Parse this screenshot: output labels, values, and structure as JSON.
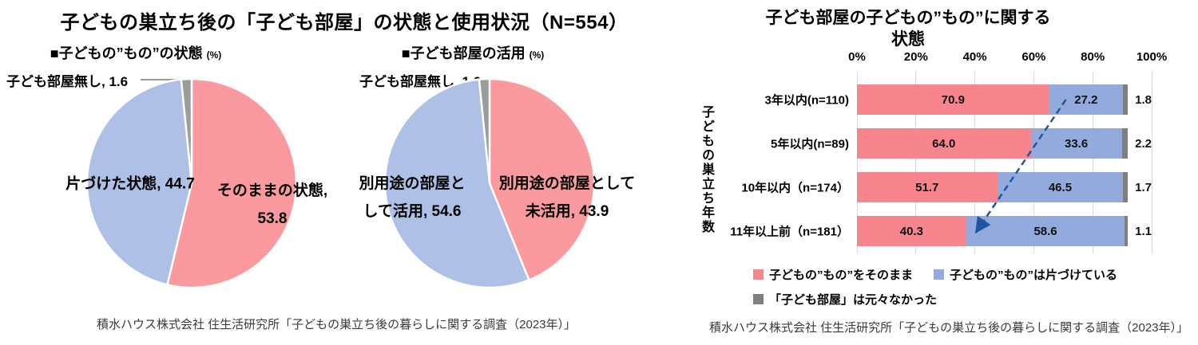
{
  "left_panel": {
    "title": "子どもの巣立ち後の「子ども部屋」の状態と使用状況（N=554）",
    "source": "積水ハウス株式会社 住生活研究所「子どもの巣立ち後の暮らしに関する調査（2023年）」",
    "figures": [
      {
        "title": "■子どもの”もの”の状態",
        "unit": "(%)",
        "callout_label": "子ども部屋無し, 1.6",
        "left_label_lines": [
          "片づけた状態, 44.7"
        ],
        "right_label_lines": [
          "そのままの状態,",
          "53.8"
        ]
      },
      {
        "title": "■子ども部屋の活用",
        "unit": "(%)",
        "callout_label": "子ども部屋無し, 1.6",
        "left_label_lines": [
          "別用途の部屋と",
          "して活用, 54.6"
        ],
        "right_label_lines": [
          "別用途の部屋として",
          "未活用, 43.9"
        ]
      }
    ]
  },
  "right_panel": {
    "title_lines": [
      "子ども部屋の子どもの”もの”に関する",
      "状態"
    ],
    "y_axis_title": "子どもの巣立ち年数",
    "source": "積水ハウス株式会社 住生活研究所「子どもの巣立ち後の暮らしに関する調査（2023年）」"
  },
  "chart_data": [
    {
      "type": "pie",
      "title": "子どもの”もの”の状態",
      "unit": "%",
      "start_angle": "top",
      "direction": "clockwise",
      "slices": [
        {
          "label": "そのままの状態",
          "value": 53.8,
          "color": "#FA9A9E"
        },
        {
          "label": "片づけた状態",
          "value": 44.7,
          "color": "#AEC0E6"
        },
        {
          "label": "子ども部屋無し",
          "value": 1.6,
          "color": "#9C9C9C"
        }
      ]
    },
    {
      "type": "pie",
      "title": "子ども部屋の活用",
      "unit": "%",
      "start_angle": "top",
      "direction": "clockwise",
      "slices": [
        {
          "label": "別用途の部屋として未活用",
          "value": 43.9,
          "color": "#FA9A9E"
        },
        {
          "label": "別用途の部屋として活用",
          "value": 54.6,
          "color": "#AEC0E6"
        },
        {
          "label": "子ども部屋無し",
          "value": 1.6,
          "color": "#9C9C9C"
        }
      ]
    },
    {
      "type": "bar",
      "orientation": "horizontal-stacked",
      "title": "子ども部屋の子どもの”もの”に関する状態",
      "categories": [
        "3年以内(n=110)",
        "5年以内(n=89)",
        "10年以内（n=174）",
        "11年以上前（n=181）"
      ],
      "series": [
        {
          "name": "子どもの”もの”をそのまま",
          "color": "#F7858D",
          "values": [
            70.9,
            64.0,
            51.7,
            40.3
          ]
        },
        {
          "name": "子どもの”もの”は片づけている",
          "color": "#93AADC",
          "values": [
            27.2,
            33.6,
            46.5,
            58.6
          ]
        },
        {
          "name": "「子ども部屋」は元々なかった",
          "color": "#7F7F7F",
          "values": [
            1.8,
            2.2,
            1.7,
            1.1
          ]
        }
      ],
      "x_ticks": [
        "0%",
        "20%",
        "40%",
        "60%",
        "80%",
        "100%"
      ],
      "xlim": [
        0,
        100
      ],
      "grid": true,
      "legend_position": "bottom",
      "annotation_arrow": {
        "color": "#2155A3",
        "style": "dashed",
        "from_row": 0,
        "to_row": 3,
        "along_series": 0
      }
    }
  ]
}
